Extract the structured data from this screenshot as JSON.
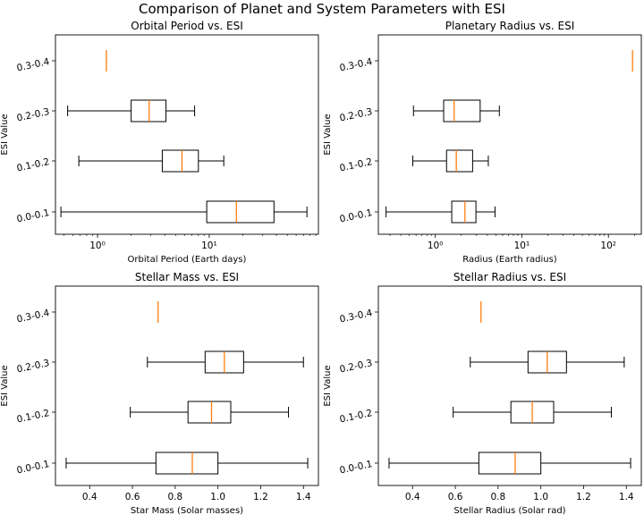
{
  "suptitle": "Comparison of Planet and System Parameters with ESI",
  "chart_data": [
    {
      "type": "boxplot",
      "orientation": "horizontal",
      "title": "Orbital Period vs. ESI",
      "xlabel": "Orbital Period (Earth days)",
      "ylabel": "ESI Value",
      "xscale": "log",
      "xlim": [
        0.42,
        95
      ],
      "xticks": [
        1,
        10
      ],
      "xtick_labels": [
        "10⁰",
        "10¹"
      ],
      "categories": [
        "0.0-0.1",
        "0.1-0.2",
        "0.2-0.3",
        "0.3-0.4"
      ],
      "boxes": [
        {
          "category": "0.0-0.1",
          "whisker_low": 0.47,
          "q1": 9.5,
          "median": 17.5,
          "q3": 38,
          "whisker_high": 75
        },
        {
          "category": "0.1-0.2",
          "whisker_low": 0.68,
          "q1": 3.8,
          "median": 5.7,
          "q3": 8.0,
          "whisker_high": 13.5
        },
        {
          "category": "0.2-0.3",
          "whisker_low": 0.54,
          "q1": 2.0,
          "median": 2.9,
          "q3": 4.1,
          "whisker_high": 7.4
        },
        {
          "category": "0.3-0.4",
          "whisker_low": 1.2,
          "q1": 1.2,
          "median": 1.2,
          "q3": 1.2,
          "whisker_high": 1.2
        }
      ]
    },
    {
      "type": "boxplot",
      "orientation": "horizontal",
      "title": "Planetary Radius vs. ESI",
      "xlabel": "Radius (Earth radius)",
      "ylabel": "ESI Value",
      "xscale": "log",
      "xlim": [
        0.22,
        240
      ],
      "xticks": [
        1,
        10,
        100
      ],
      "xtick_labels": [
        "10⁰",
        "10¹",
        "10²"
      ],
      "categories": [
        "0.0-0.1",
        "0.1-0.2",
        "0.2-0.3",
        "0.3-0.4"
      ],
      "boxes": [
        {
          "category": "0.0-0.1",
          "whisker_low": 0.27,
          "q1": 1.55,
          "median": 2.2,
          "q3": 2.95,
          "whisker_high": 4.9
        },
        {
          "category": "0.1-0.2",
          "whisker_low": 0.55,
          "q1": 1.35,
          "median": 1.75,
          "q3": 2.7,
          "whisker_high": 4.1
        },
        {
          "category": "0.2-0.3",
          "whisker_low": 0.56,
          "q1": 1.25,
          "median": 1.65,
          "q3": 3.3,
          "whisker_high": 5.5
        },
        {
          "category": "0.3-0.4",
          "whisker_low": 190,
          "q1": 190,
          "median": 190,
          "q3": 190,
          "whisker_high": 190
        }
      ]
    },
    {
      "type": "boxplot",
      "orientation": "horizontal",
      "title": "Stellar Mass vs. ESI",
      "xlabel": "Star Mass (Solar masses)",
      "ylabel": "ESI Value",
      "xscale": "linear",
      "xlim": [
        0.24,
        1.47
      ],
      "xticks": [
        0.4,
        0.6,
        0.8,
        1.0,
        1.2,
        1.4
      ],
      "xtick_labels": [
        "0.4",
        "0.6",
        "0.8",
        "1.0",
        "1.2",
        "1.4"
      ],
      "categories": [
        "0.0-0.1",
        "0.1-0.2",
        "0.2-0.3",
        "0.3-0.4"
      ],
      "boxes": [
        {
          "category": "0.0-0.1",
          "whisker_low": 0.29,
          "q1": 0.71,
          "median": 0.88,
          "q3": 1.0,
          "whisker_high": 1.42
        },
        {
          "category": "0.1-0.2",
          "whisker_low": 0.59,
          "q1": 0.86,
          "median": 0.97,
          "q3": 1.06,
          "whisker_high": 1.33
        },
        {
          "category": "0.2-0.3",
          "whisker_low": 0.67,
          "q1": 0.94,
          "median": 1.03,
          "q3": 1.12,
          "whisker_high": 1.4
        },
        {
          "category": "0.3-0.4",
          "whisker_low": 0.72,
          "q1": 0.72,
          "median": 0.72,
          "q3": 0.72,
          "whisker_high": 0.72
        }
      ]
    },
    {
      "type": "boxplot",
      "orientation": "horizontal",
      "title": "Stellar Radius vs. ESI",
      "xlabel": "Stellar Radius (Solar rad)",
      "ylabel": "ESI Value",
      "xscale": "linear",
      "xlim": [
        0.24,
        1.47
      ],
      "xticks": [
        0.4,
        0.6,
        0.8,
        1.0,
        1.2,
        1.4
      ],
      "xtick_labels": [
        "0.4",
        "0.6",
        "0.8",
        "1.0",
        "1.2",
        "1.4"
      ],
      "categories": [
        "0.0-0.1",
        "0.1-0.2",
        "0.2-0.3",
        "0.3-0.4"
      ],
      "boxes": [
        {
          "category": "0.0-0.1",
          "whisker_low": 0.29,
          "q1": 0.71,
          "median": 0.88,
          "q3": 1.0,
          "whisker_high": 1.42
        },
        {
          "category": "0.1-0.2",
          "whisker_low": 0.59,
          "q1": 0.86,
          "median": 0.96,
          "q3": 1.06,
          "whisker_high": 1.33
        },
        {
          "category": "0.2-0.3",
          "whisker_low": 0.67,
          "q1": 0.94,
          "median": 1.03,
          "q3": 1.12,
          "whisker_high": 1.39
        },
        {
          "category": "0.3-0.4",
          "whisker_low": 0.72,
          "q1": 0.72,
          "median": 0.72,
          "q3": 0.72,
          "whisker_high": 0.72
        }
      ]
    }
  ],
  "colors": {
    "box_edge": "#000000",
    "median": "#ff7f0e",
    "axes_edge": "#000000",
    "background": "#ffffff"
  }
}
